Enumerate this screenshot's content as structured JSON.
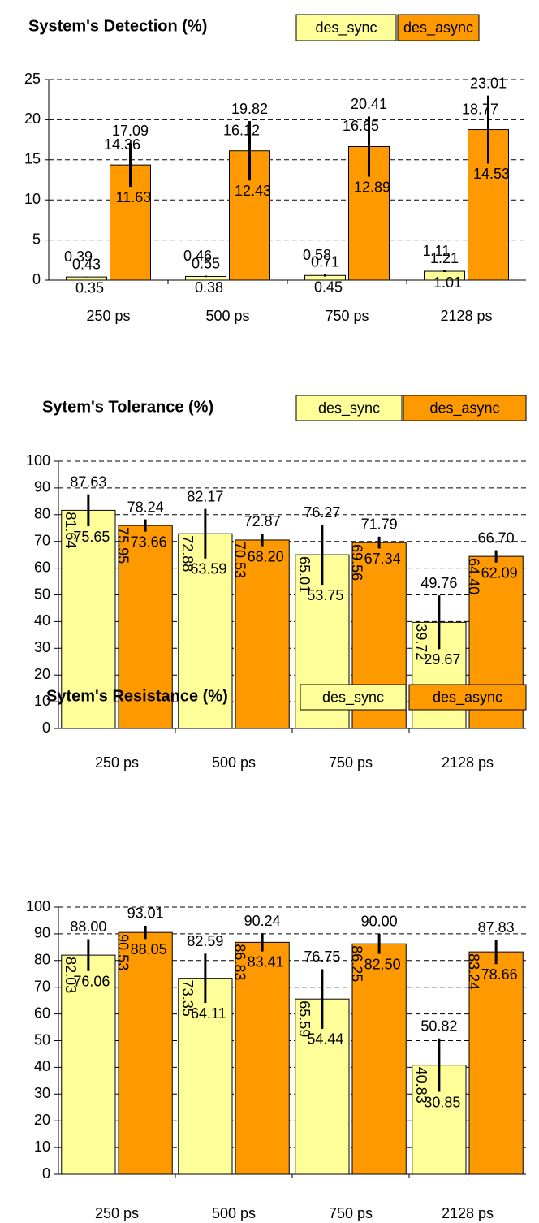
{
  "chart_data": [
    {
      "type": "bar",
      "title": "System's Detection (%)",
      "categories": [
        "250 ps",
        "500 ps",
        "750 ps",
        "2128 ps"
      ],
      "ylim": [
        0,
        25
      ],
      "yticks": [
        0,
        5,
        10,
        15,
        20,
        25
      ],
      "grid": true,
      "series": [
        {
          "name": "des_sync",
          "color": "#ffff99",
          "values": [
            0.39,
            0.46,
            0.58,
            1.11
          ],
          "upper": [
            0.43,
            0.55,
            0.71,
            1.21
          ],
          "lower": [
            0.35,
            0.38,
            0.45,
            1.01
          ],
          "value_labels": [
            "0.39",
            "0.46",
            "0.58",
            "1.11"
          ],
          "upper_labels": [
            "0.43",
            "0.55",
            "0.71",
            "1.21"
          ],
          "lower_labels": [
            "0.35",
            "0.38",
            "0.45",
            "1.01"
          ]
        },
        {
          "name": "des_async",
          "color": "#ff9900",
          "values": [
            14.36,
            16.12,
            16.65,
            18.77
          ],
          "upper": [
            17.09,
            19.82,
            20.41,
            23.01
          ],
          "lower": [
            11.63,
            12.43,
            12.89,
            14.53
          ],
          "value_labels": [
            "14.36",
            "16.12",
            "16.65",
            "18.77"
          ],
          "upper_labels": [
            "17.09",
            "19.82",
            "20.41",
            "23.01"
          ],
          "lower_labels": [
            "11.63",
            "12.43",
            "12.89",
            "14.53"
          ]
        }
      ]
    },
    {
      "type": "bar",
      "title": "Sytem's Tolerance (%)",
      "categories": [
        "250 ps",
        "500 ps",
        "750 ps",
        "2128 ps"
      ],
      "ylim": [
        0,
        100
      ],
      "yticks": [
        0,
        10,
        20,
        30,
        40,
        50,
        60,
        70,
        80,
        90,
        100
      ],
      "grid": true,
      "series": [
        {
          "name": "des_sync",
          "color": "#ffff99",
          "values": [
            81.64,
            72.88,
            65.01,
            39.72
          ],
          "upper": [
            87.63,
            82.17,
            76.27,
            49.76
          ],
          "lower": [
            75.65,
            63.59,
            53.75,
            29.67
          ],
          "value_labels": [
            "81.64",
            "72.88",
            "65.01",
            "39.72"
          ],
          "upper_labels": [
            "87.63",
            "82.17",
            "76.27",
            "49.76"
          ],
          "lower_labels": [
            "75.65",
            "63.59",
            "53.75",
            "29.67"
          ]
        },
        {
          "name": "des_async",
          "color": "#ff9900",
          "values": [
            75.95,
            70.53,
            69.56,
            64.4
          ],
          "upper": [
            78.24,
            72.87,
            71.79,
            66.7
          ],
          "lower": [
            73.66,
            68.2,
            67.34,
            62.09
          ],
          "value_labels": [
            "75.95",
            "70.53",
            "69.56",
            "64.40"
          ],
          "upper_labels": [
            "78.24",
            "72.87",
            "71.79",
            "66.70"
          ],
          "lower_labels": [
            "73.66",
            "68.20",
            "67.34",
            "62.09"
          ]
        }
      ]
    },
    {
      "type": "bar",
      "title": "Sytem's Resistance (%)",
      "categories": [
        "250 ps",
        "500 ps",
        "750 ps",
        "2128 ps"
      ],
      "ylim": [
        0,
        100
      ],
      "yticks": [
        0,
        10,
        20,
        30,
        40,
        50,
        60,
        70,
        80,
        90,
        100
      ],
      "grid": true,
      "series": [
        {
          "name": "des_sync",
          "color": "#ffff99",
          "values": [
            82.03,
            73.35,
            65.59,
            40.83
          ],
          "upper": [
            88.0,
            82.59,
            76.75,
            50.82
          ],
          "lower": [
            76.06,
            64.11,
            54.44,
            30.85
          ],
          "value_labels": [
            "82.03",
            "73.35",
            "65.59",
            "40.83"
          ],
          "upper_labels": [
            "88.00",
            "82.59",
            "76.75",
            "50.82"
          ],
          "lower_labels": [
            "76.06",
            "64.11",
            "54.44",
            "30.85"
          ]
        },
        {
          "name": "des_async",
          "color": "#ff9900",
          "values": [
            90.53,
            86.83,
            86.25,
            83.24
          ],
          "upper": [
            93.01,
            90.24,
            90.0,
            87.83
          ],
          "lower": [
            88.05,
            83.41,
            82.5,
            78.66
          ],
          "value_labels": [
            "90.53",
            "86.83",
            "86.25",
            "83.24"
          ],
          "upper_labels": [
            "93.01",
            "90.24",
            "90.00",
            "87.83"
          ],
          "lower_labels": [
            "88.05",
            "83.41",
            "82.50",
            "78.66"
          ]
        }
      ]
    }
  ]
}
